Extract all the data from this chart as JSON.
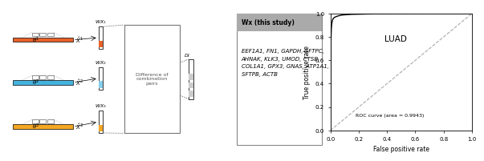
{
  "roc_curve_area": 0.9943,
  "luad_label": "LUAD",
  "roc_label": "ROC curve (area = 0.9943)",
  "xlabel": "False positive rate",
  "ylabel": "True positive rate",
  "yticks": [
    0.0,
    0.2,
    0.4,
    0.6,
    0.8,
    1.0
  ],
  "xticks": [
    0.0,
    0.2,
    0.4,
    0.6,
    0.8,
    1.0
  ],
  "gene_list_line1": "EEF1A1, FN1, GAPDH, SFTPC,",
  "gene_list_line2": "AHNAK, KLK3, UMOD, CTSB,",
  "gene_list_line3": "COL1A1, GPX3, GNAS, ATP1A1,",
  "gene_list_line4": "SFTPB, ACTB",
  "wx_title": "Wx (this study)",
  "diff_label": "Difference of\ncombination\npairs",
  "di_label": "DI",
  "color_orange1": "#E8622A",
  "color_blue": "#45B3E0",
  "color_orange2": "#F5A623",
  "color_wx1": "#E8622A",
  "color_wx2": "#87CEEB",
  "color_wx3": "#F5A623",
  "bg_color": "#FFFFFF",
  "title_bar_color": "#AAAAAA",
  "border_color": "#888888",
  "roc_fpr": [
    0.0,
    0.003,
    0.006,
    0.01,
    0.015,
    0.02,
    0.03,
    0.05,
    0.08,
    0.15,
    0.3,
    0.5,
    0.7,
    1.0
  ],
  "roc_tpr": [
    0.0,
    0.75,
    0.87,
    0.92,
    0.945,
    0.958,
    0.968,
    0.978,
    0.987,
    0.993,
    0.997,
    0.999,
    1.0,
    1.0
  ]
}
